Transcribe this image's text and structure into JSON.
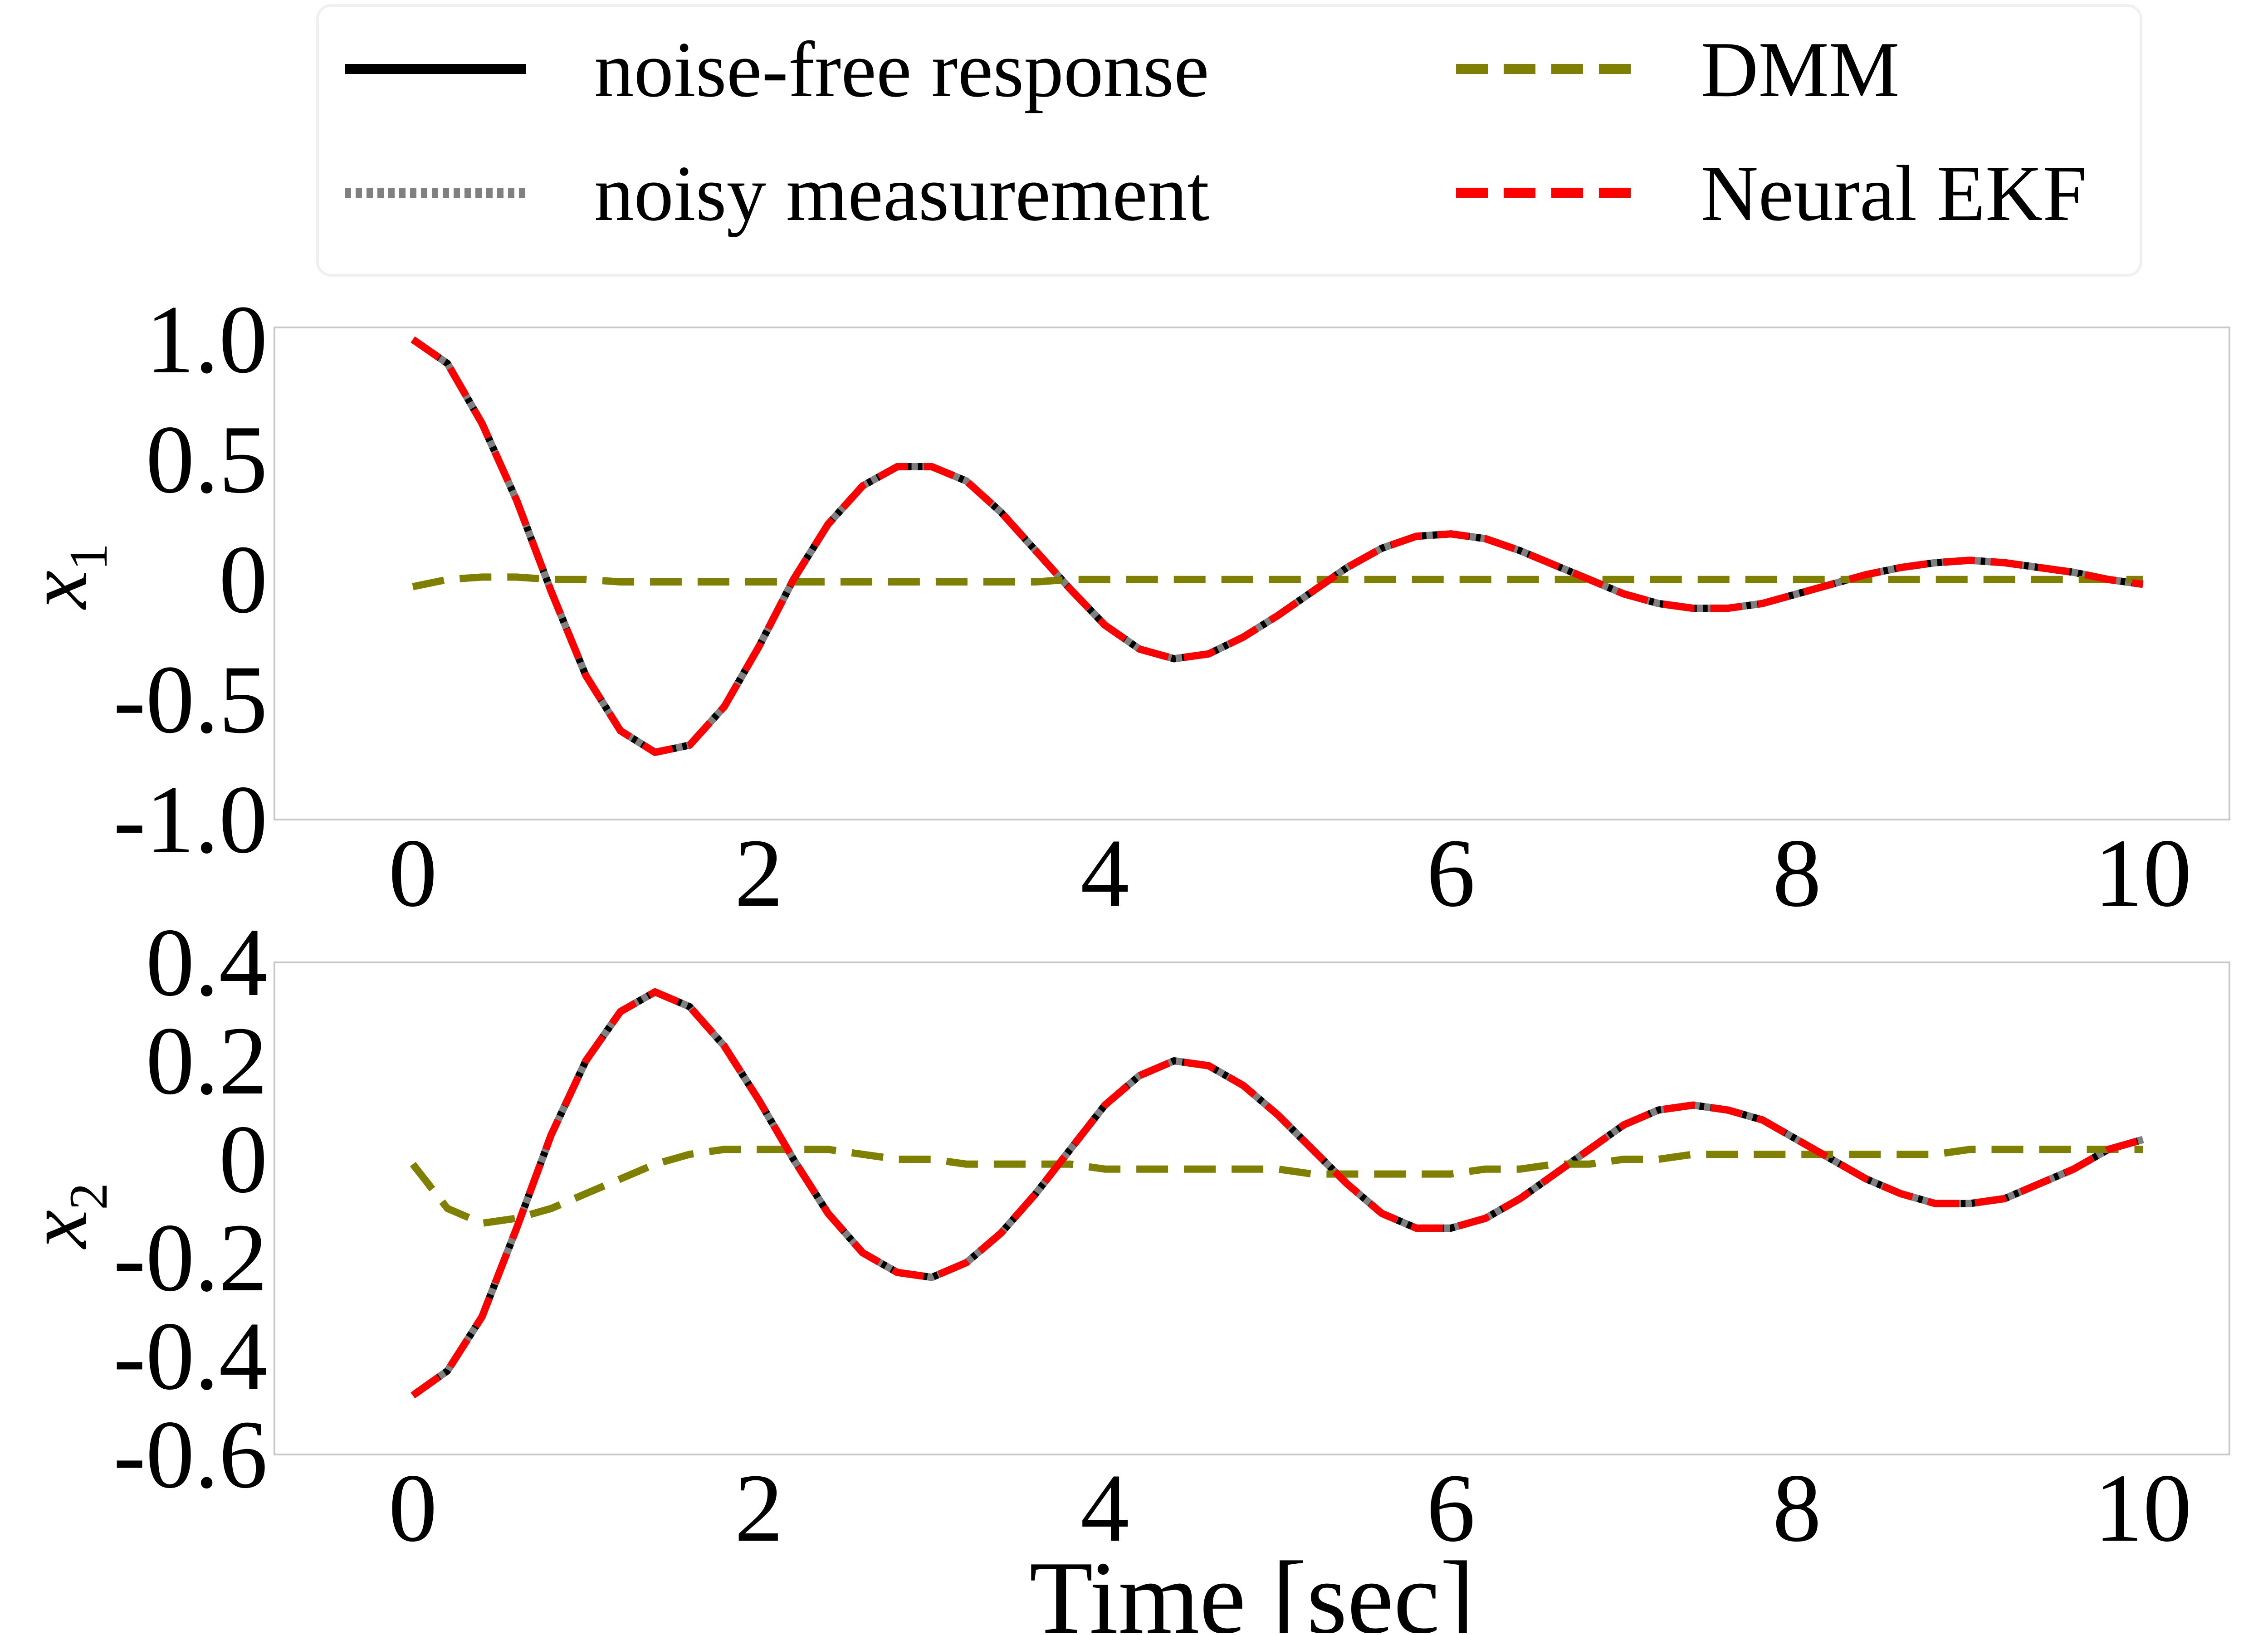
{
  "legend": {
    "entries": [
      {
        "label": "noise-free response",
        "color": "#000000",
        "style": "solid"
      },
      {
        "label": "noisy measurement",
        "color": "#808080",
        "style": "dotted"
      },
      {
        "label": "DMM",
        "color": "#808000",
        "style": "dashed"
      },
      {
        "label": "Neural EKF",
        "color": "#ff0000",
        "style": "dashed"
      }
    ]
  },
  "chart_data": [
    {
      "type": "line",
      "ylabel": "x",
      "ylabel_sub": "1",
      "xlabel": "",
      "xlim": [
        -0.8,
        10.5
      ],
      "ylim": [
        -1.0,
        1.05
      ],
      "xticks": [
        0,
        2,
        4,
        6,
        8,
        10
      ],
      "xtick_labels": [
        "0",
        "2",
        "4",
        "6",
        "8",
        "10"
      ],
      "yticks": [
        -1.0,
        -0.5,
        0,
        0.5,
        1.0
      ],
      "ytick_labels": [
        "-1.0",
        "-0.5",
        "0",
        "0.5",
        "1.0"
      ],
      "grid": false,
      "x": [
        0.0,
        0.2,
        0.4,
        0.6,
        0.8,
        1.0,
        1.2,
        1.4,
        1.6,
        1.8,
        2.0,
        2.2,
        2.4,
        2.6,
        2.8,
        3.0,
        3.2,
        3.4,
        3.6,
        3.8,
        4.0,
        4.2,
        4.4,
        4.6,
        4.8,
        5.0,
        5.2,
        5.4,
        5.6,
        5.8,
        6.0,
        6.2,
        6.4,
        6.6,
        6.8,
        7.0,
        7.2,
        7.4,
        7.6,
        7.8,
        8.0,
        8.2,
        8.4,
        8.6,
        8.8,
        9.0,
        9.2,
        9.4,
        9.6,
        9.8,
        10.0
      ],
      "series": [
        {
          "name": "noise-free response",
          "values": [
            1.0,
            0.9,
            0.65,
            0.33,
            -0.05,
            -0.4,
            -0.63,
            -0.72,
            -0.69,
            -0.53,
            -0.28,
            0.0,
            0.23,
            0.39,
            0.47,
            0.47,
            0.41,
            0.28,
            0.12,
            -0.04,
            -0.19,
            -0.29,
            -0.33,
            -0.31,
            -0.24,
            -0.15,
            -0.05,
            0.05,
            0.13,
            0.18,
            0.19,
            0.17,
            0.12,
            0.06,
            0.0,
            -0.06,
            -0.1,
            -0.12,
            -0.12,
            -0.1,
            -0.06,
            -0.02,
            0.02,
            0.05,
            0.07,
            0.08,
            0.07,
            0.05,
            0.03,
            0.0,
            -0.02
          ]
        },
        {
          "name": "noisy measurement",
          "values": [
            1.0,
            0.9,
            0.65,
            0.33,
            -0.05,
            -0.4,
            -0.63,
            -0.72,
            -0.69,
            -0.53,
            -0.28,
            0.0,
            0.23,
            0.39,
            0.47,
            0.47,
            0.41,
            0.28,
            0.12,
            -0.04,
            -0.19,
            -0.29,
            -0.33,
            -0.31,
            -0.24,
            -0.15,
            -0.05,
            0.05,
            0.13,
            0.18,
            0.19,
            0.17,
            0.12,
            0.06,
            0.0,
            -0.06,
            -0.1,
            -0.12,
            -0.12,
            -0.1,
            -0.06,
            -0.02,
            0.02,
            0.05,
            0.07,
            0.08,
            0.07,
            0.05,
            0.03,
            0.0,
            -0.02
          ]
        },
        {
          "name": "DMM",
          "values": [
            -0.03,
            0.0,
            0.01,
            0.01,
            0.0,
            0.0,
            -0.01,
            -0.01,
            -0.01,
            -0.01,
            -0.01,
            -0.01,
            -0.01,
            -0.01,
            -0.01,
            -0.01,
            -0.01,
            -0.01,
            -0.01,
            0.0,
            0.0,
            0.0,
            0.0,
            0.0,
            0.0,
            0.0,
            0.0,
            0.0,
            0.0,
            0.0,
            0.0,
            0.0,
            0.0,
            0.0,
            0.0,
            0.0,
            0.0,
            0.0,
            0.0,
            0.0,
            0.0,
            0.0,
            0.0,
            0.0,
            0.0,
            0.0,
            0.0,
            0.0,
            0.0,
            0.0,
            0.0
          ]
        },
        {
          "name": "Neural EKF",
          "values": [
            1.0,
            0.9,
            0.65,
            0.33,
            -0.05,
            -0.4,
            -0.63,
            -0.72,
            -0.69,
            -0.53,
            -0.28,
            0.0,
            0.23,
            0.39,
            0.47,
            0.47,
            0.41,
            0.28,
            0.12,
            -0.04,
            -0.19,
            -0.29,
            -0.33,
            -0.31,
            -0.24,
            -0.15,
            -0.05,
            0.05,
            0.13,
            0.18,
            0.19,
            0.17,
            0.12,
            0.06,
            0.0,
            -0.06,
            -0.1,
            -0.12,
            -0.12,
            -0.1,
            -0.06,
            -0.02,
            0.02,
            0.05,
            0.07,
            0.08,
            0.07,
            0.05,
            0.03,
            0.0,
            -0.02
          ]
        }
      ]
    },
    {
      "type": "line",
      "ylabel": "x",
      "ylabel_sub": "2",
      "xlabel": "Time [sec]",
      "xlim": [
        -0.8,
        10.5
      ],
      "ylim": [
        -0.6,
        0.4
      ],
      "xticks": [
        0,
        2,
        4,
        6,
        8,
        10
      ],
      "xtick_labels": [
        "0",
        "2",
        "4",
        "6",
        "8",
        "10"
      ],
      "yticks": [
        -0.6,
        -0.4,
        -0.2,
        0,
        0.2,
        0.4
      ],
      "ytick_labels": [
        "-0.6",
        "-0.4",
        "-0.2",
        "0",
        "0.2",
        "0.4"
      ],
      "grid": false,
      "x": [
        0.0,
        0.2,
        0.4,
        0.6,
        0.8,
        1.0,
        1.2,
        1.4,
        1.6,
        1.8,
        2.0,
        2.2,
        2.4,
        2.6,
        2.8,
        3.0,
        3.2,
        3.4,
        3.6,
        3.8,
        4.0,
        4.2,
        4.4,
        4.6,
        4.8,
        5.0,
        5.2,
        5.4,
        5.6,
        5.8,
        6.0,
        6.2,
        6.4,
        6.6,
        6.8,
        7.0,
        7.2,
        7.4,
        7.6,
        7.8,
        8.0,
        8.2,
        8.4,
        8.6,
        8.8,
        9.0,
        9.2,
        9.4,
        9.6,
        9.8,
        10.0
      ],
      "series": [
        {
          "name": "noise-free response",
          "values": [
            -0.48,
            -0.43,
            -0.32,
            -0.14,
            0.05,
            0.2,
            0.3,
            0.34,
            0.31,
            0.23,
            0.12,
            0.0,
            -0.11,
            -0.19,
            -0.23,
            -0.24,
            -0.21,
            -0.15,
            -0.07,
            0.02,
            0.11,
            0.17,
            0.2,
            0.19,
            0.15,
            0.09,
            0.02,
            -0.05,
            -0.11,
            -0.14,
            -0.14,
            -0.12,
            -0.08,
            -0.03,
            0.02,
            0.07,
            0.1,
            0.11,
            0.1,
            0.08,
            0.04,
            0.0,
            -0.04,
            -0.07,
            -0.09,
            -0.09,
            -0.08,
            -0.05,
            -0.02,
            0.02,
            0.04
          ]
        },
        {
          "name": "noisy measurement",
          "values": [
            -0.48,
            -0.43,
            -0.32,
            -0.14,
            0.05,
            0.2,
            0.3,
            0.34,
            0.31,
            0.23,
            0.12,
            0.0,
            -0.11,
            -0.19,
            -0.23,
            -0.24,
            -0.21,
            -0.15,
            -0.07,
            0.02,
            0.11,
            0.17,
            0.2,
            0.19,
            0.15,
            0.09,
            0.02,
            -0.05,
            -0.11,
            -0.14,
            -0.14,
            -0.12,
            -0.08,
            -0.03,
            0.02,
            0.07,
            0.1,
            0.11,
            0.1,
            0.08,
            0.04,
            0.0,
            -0.04,
            -0.07,
            -0.09,
            -0.09,
            -0.08,
            -0.05,
            -0.02,
            0.02,
            0.04
          ]
        },
        {
          "name": "DMM",
          "values": [
            -0.01,
            -0.1,
            -0.13,
            -0.12,
            -0.1,
            -0.07,
            -0.04,
            -0.01,
            0.01,
            0.02,
            0.02,
            0.02,
            0.02,
            0.01,
            0.0,
            0.0,
            -0.01,
            -0.01,
            -0.01,
            -0.01,
            -0.02,
            -0.02,
            -0.02,
            -0.02,
            -0.02,
            -0.02,
            -0.03,
            -0.03,
            -0.03,
            -0.03,
            -0.03,
            -0.02,
            -0.02,
            -0.01,
            -0.01,
            0.0,
            0.0,
            0.01,
            0.01,
            0.01,
            0.01,
            0.01,
            0.01,
            0.01,
            0.01,
            0.02,
            0.02,
            0.02,
            0.02,
            0.02,
            0.02
          ]
        },
        {
          "name": "Neural EKF",
          "values": [
            -0.48,
            -0.43,
            -0.32,
            -0.14,
            0.05,
            0.2,
            0.3,
            0.34,
            0.31,
            0.23,
            0.12,
            0.0,
            -0.11,
            -0.19,
            -0.23,
            -0.24,
            -0.21,
            -0.15,
            -0.07,
            0.02,
            0.11,
            0.17,
            0.2,
            0.19,
            0.15,
            0.09,
            0.02,
            -0.05,
            -0.11,
            -0.14,
            -0.14,
            -0.12,
            -0.08,
            -0.03,
            0.02,
            0.07,
            0.1,
            0.11,
            0.1,
            0.08,
            0.04,
            0.0,
            -0.04,
            -0.07,
            -0.09,
            -0.09,
            -0.08,
            -0.05,
            -0.02,
            0.02,
            0.04
          ]
        }
      ]
    }
  ]
}
